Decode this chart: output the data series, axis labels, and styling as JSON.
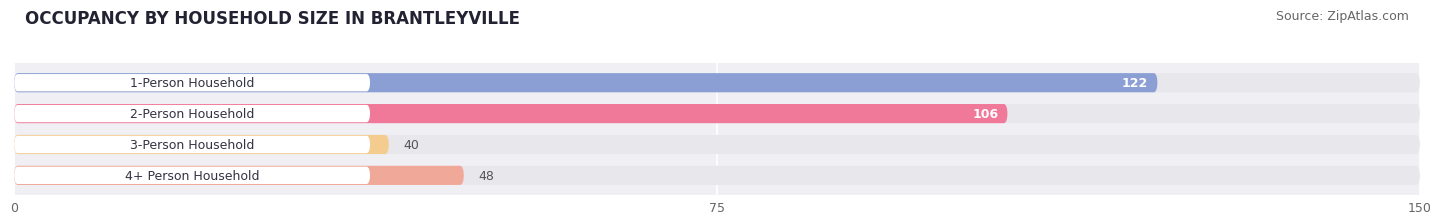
{
  "title": "OCCUPANCY BY HOUSEHOLD SIZE IN BRANTLEYVILLE",
  "source": "Source: ZipAtlas.com",
  "categories": [
    "1-Person Household",
    "2-Person Household",
    "3-Person Household",
    "4+ Person Household"
  ],
  "values": [
    122,
    106,
    40,
    48
  ],
  "bar_colors": [
    "#8b9fd4",
    "#f07898",
    "#f5cc90",
    "#f0a898"
  ],
  "label_colors": [
    "white",
    "white",
    "#555555",
    "#555555"
  ],
  "xlim": [
    0,
    150
  ],
  "xticks": [
    0,
    75,
    150
  ],
  "background_color": "#ffffff",
  "bar_background_color": "#e8e8ec",
  "title_fontsize": 12,
  "source_fontsize": 9,
  "bar_label_fontsize": 9,
  "category_fontsize": 9,
  "bar_height": 0.62
}
